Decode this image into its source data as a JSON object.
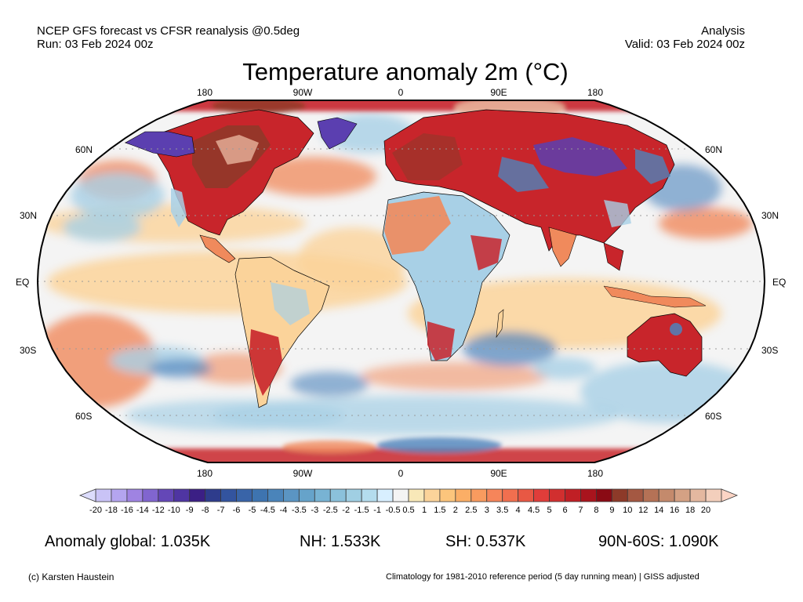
{
  "header": {
    "left_line1": "NCEP GFS forecast vs CFSR reanalysis @0.5deg",
    "left_line2": "Run: 03 Feb 2024 00z",
    "right_line1": "Analysis",
    "right_line2": "Valid: 03 Feb 2024 00z"
  },
  "map": {
    "title": "Temperature anomaly 2m (°C)",
    "projection": "Robinson",
    "lon_labels_top": [
      "180",
      "90W",
      "0",
      "90E",
      "180"
    ],
    "lon_labels_bottom": [
      "180",
      "90W",
      "0",
      "90E",
      "180"
    ],
    "lat_labels_left": [
      "60N",
      "30N",
      "EQ",
      "30S",
      "60S"
    ],
    "lat_labels_right": [
      "60N",
      "30N",
      "EQ",
      "30S",
      "60S"
    ],
    "colors": {
      "ocean_neutral": "#f4f4f4",
      "warm_light": "#fbd39a",
      "warm": "#f08a5c",
      "hot": "#c8252b",
      "very_hot": "#8d3a29",
      "extreme_hot": "#e8b49c",
      "cool": "#a8d0e6",
      "cold": "#4d83bc",
      "very_cold": "#5b3fb0",
      "border": "#000000",
      "grid": "#9a9a9a"
    }
  },
  "colorbar": {
    "levels": [
      "-20",
      "-18",
      "-16",
      "-14",
      "-12",
      "-10",
      "-9",
      "-8",
      "-7",
      "-6",
      "-5",
      "-4.5",
      "-4",
      "-3.5",
      "-3",
      "-2.5",
      "-2",
      "-1.5",
      "-1",
      "-0.5",
      "0.5",
      "1",
      "1.5",
      "2",
      "2.5",
      "3",
      "3.5",
      "4",
      "4.5",
      "5",
      "6",
      "7",
      "8",
      "9",
      "10",
      "12",
      "14",
      "16",
      "18",
      "20"
    ],
    "colors": [
      "#c9c3f6",
      "#b4a5ef",
      "#9f83e2",
      "#8165cf",
      "#6447b7",
      "#4f35a2",
      "#3b1f85",
      "#2e3c8c",
      "#33549f",
      "#3964a8",
      "#3e74b0",
      "#4a84ba",
      "#5b95c3",
      "#66a3ca",
      "#78b3d3",
      "#8bc1db",
      "#a0cfe3",
      "#b4dcee",
      "#d8efff",
      "#f4f4f4",
      "#f8e8b8",
      "#fbd39a",
      "#fcc57c",
      "#fbae66",
      "#f99b5f",
      "#f6855a",
      "#f16f4f",
      "#e85844",
      "#e03d3a",
      "#d12f2f",
      "#c01f25",
      "#a9141d",
      "#8a0a14",
      "#8d3a29",
      "#a45842",
      "#b57256",
      "#c48a6c",
      "#d4a184",
      "#e4b8a0",
      "#f3cfbc"
    ],
    "low_extend_color": "#dcdcfc",
    "high_extend_color": "#fcd4c4"
  },
  "stats": {
    "global": "Anomaly global: 1.035K",
    "nh": "NH: 1.533K",
    "sh": "SH: 0.537K",
    "band": "90N-60S: 1.090K"
  },
  "footer": {
    "credit": "(c) Karsten Haustein",
    "note": "Climatology for 1981-2010 reference period (5 day running mean) | GISS adjusted"
  }
}
